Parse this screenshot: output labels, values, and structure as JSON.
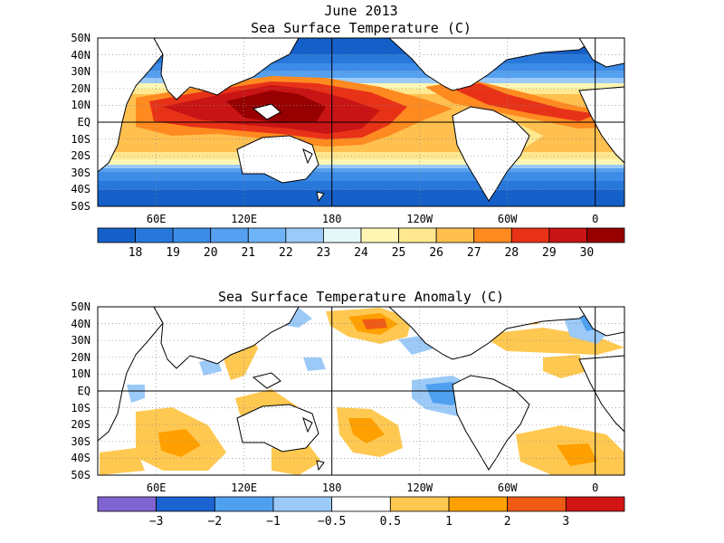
{
  "figure": {
    "title_line1": "June 2013",
    "title_line2": "Sea Surface Temperature (C)",
    "lat_labels": [
      "50N",
      "40N",
      "30N",
      "20N",
      "10N",
      "EQ",
      "10S",
      "20S",
      "30S",
      "40S",
      "50S"
    ],
    "lon_labels": [
      "60E",
      "120E",
      "180",
      "120W",
      "60W",
      "0"
    ]
  },
  "panel_sst": {
    "title": "Sea Surface Temperature (C)",
    "colorbar": {
      "labels": [
        "18",
        "19",
        "20",
        "21",
        "22",
        "23",
        "24",
        "25",
        "26",
        "27",
        "28",
        "29",
        "30"
      ],
      "colors": [
        "#1560c8",
        "#2878dc",
        "#3c8ce8",
        "#55a0f0",
        "#70b4f8",
        "#9ccaf8",
        "#e4f8f8",
        "#fff6b4",
        "#ffe890",
        "#ffc050",
        "#ff8a20",
        "#e83218",
        "#c81414",
        "#960000"
      ]
    }
  },
  "panel_anom": {
    "title": "Sea Surface Temperature Anomaly (C)",
    "colorbar": {
      "labels": [
        "−3",
        "−2",
        "−1",
        "−0.5",
        "0.5",
        "1",
        "2",
        "3"
      ],
      "colors": [
        "#8064d2",
        "#1c64d2",
        "#50a0f0",
        "#9ccaf8",
        "#ffffff",
        "#ffc850",
        "#ffa000",
        "#f05a14",
        "#d21414"
      ]
    }
  },
  "map_colors": {
    "land": "#ffffff",
    "coast": "#000000",
    "grid": "#888888"
  }
}
